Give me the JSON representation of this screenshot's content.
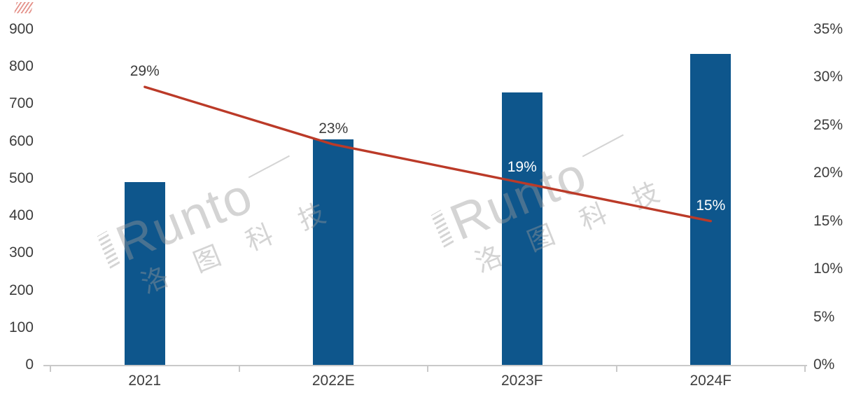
{
  "corner_mark": {
    "color": "#cf3b2d"
  },
  "watermarks": [
    {
      "brand": "Runto",
      "cn": "洛 图 科 技"
    },
    {
      "brand": "Runto",
      "cn": "洛 图 科 技"
    }
  ],
  "chart_data": {
    "type": "bar",
    "title": "",
    "categories": [
      "2021",
      "2022E",
      "2023F",
      "2024F"
    ],
    "series": [
      {
        "name": "volume-bars",
        "type": "bar",
        "values": [
          490,
          605,
          730,
          835
        ],
        "color": "#0e568c"
      },
      {
        "name": "growth-rate-line",
        "type": "line",
        "values": [
          29,
          23,
          19,
          15
        ],
        "unit": "%",
        "labels": [
          "29%",
          "23%",
          "19%",
          "15%"
        ],
        "label_colors": [
          "#3d3d3d",
          "#3d3d3d",
          "#ffffff",
          "#ffffff"
        ],
        "color": "#bb3a28"
      }
    ],
    "left_axis": {
      "ticks": [
        "0",
        "100",
        "200",
        "300",
        "400",
        "500",
        "600",
        "700",
        "800",
        "900"
      ],
      "range": [
        0,
        900
      ]
    },
    "right_axis": {
      "ticks": [
        "0%",
        "5%",
        "10%",
        "15%",
        "20%",
        "25%",
        "30%",
        "35%"
      ],
      "range": [
        0,
        35
      ]
    },
    "grid": false,
    "legend": null,
    "axis_color": "#c9c9c9",
    "tick_label_color": "#3d3d3d"
  }
}
